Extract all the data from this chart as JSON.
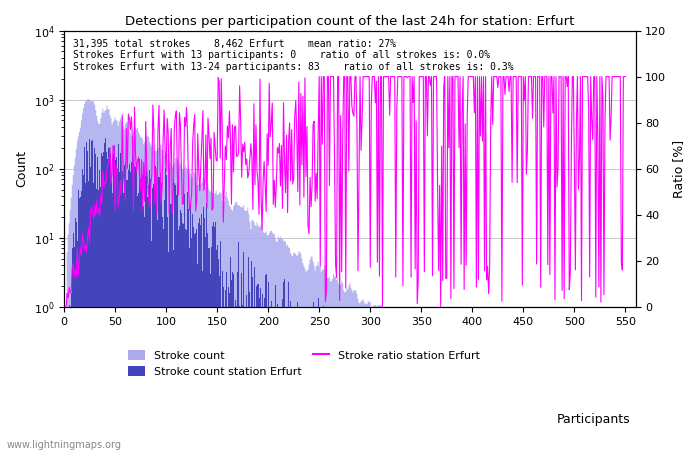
{
  "title": "Detections per participation count of the last 24h for station: Erfurt",
  "xlabel": "Participants",
  "ylabel_left": "Count",
  "ylabel_right": "Ratio [%]",
  "annotation_line1": "31,395 total strokes    8,462 Erfurt    mean ratio: 27%",
  "annotation_line2": "Strokes Erfurt with 13 participants: 0    ratio of all strokes is: 0.0%",
  "annotation_line3": "Strokes Erfurt with 13-24 participants: 83    ratio of all strokes is: 0.3%",
  "watermark": "www.lightningmaps.org",
  "legend_items": [
    "Stroke count",
    "Stroke count station Erfurt",
    "Stroke ratio station Erfurt"
  ],
  "color_stroke_count": "#aaaaee",
  "color_stroke_count_erfurt": "#4444bb",
  "color_ratio": "#ff00ff",
  "xlim": [
    0,
    560
  ],
  "ylim_right": [
    0,
    120
  ],
  "x_ticks": [
    0,
    50,
    100,
    150,
    200,
    250,
    300,
    350,
    400,
    450,
    500,
    550
  ],
  "y_right_ticks": [
    0,
    20,
    40,
    60,
    80,
    100,
    120
  ],
  "figsize": [
    7.0,
    4.5
  ],
  "dpi": 100
}
